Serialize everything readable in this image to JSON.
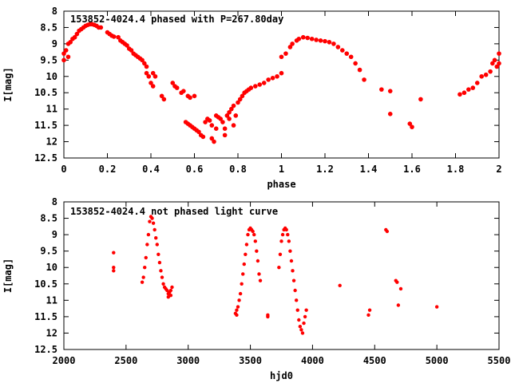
{
  "chart_data": [
    {
      "type": "scatter",
      "title": "153852-4024.4 phased with P=267.80day",
      "xlabel": "phase",
      "ylabel": "I[mag]",
      "xlim": [
        0,
        2
      ],
      "ylim": [
        12.5,
        8
      ],
      "y_inverted": true,
      "grid": false,
      "marker_color": "#ff0000",
      "x_ticks": [
        {
          "value": 0,
          "label": "0"
        },
        {
          "value": 0.2,
          "label": "0.2"
        },
        {
          "value": 0.4,
          "label": "0.4"
        },
        {
          "value": 0.6,
          "label": "0.6"
        },
        {
          "value": 0.8,
          "label": "0.8"
        },
        {
          "value": 1,
          "label": "1"
        },
        {
          "value": 1.2,
          "label": "1.2"
        },
        {
          "value": 1.4,
          "label": "1.4"
        },
        {
          "value": 1.6,
          "label": "1.6"
        },
        {
          "value": 1.8,
          "label": "1.8"
        },
        {
          "value": 2,
          "label": "2"
        }
      ],
      "y_ticks": [
        {
          "value": 8,
          "label": "8"
        },
        {
          "value": 8.5,
          "label": "8.5"
        },
        {
          "value": 9,
          "label": "9"
        },
        {
          "value": 9.5,
          "label": "9.5"
        },
        {
          "value": 10,
          "label": "10"
        },
        {
          "value": 10.5,
          "label": "10.5"
        },
        {
          "value": 11,
          "label": "11"
        },
        {
          "value": 11.5,
          "label": "11.5"
        },
        {
          "value": 12,
          "label": "12"
        },
        {
          "value": 12.5,
          "label": "12.5"
        }
      ],
      "points": [
        [
          0.0,
          9.3
        ],
        [
          0.0,
          9.5
        ],
        [
          0.01,
          9.2
        ],
        [
          0.02,
          9.0
        ],
        [
          0.02,
          9.4
        ],
        [
          0.03,
          8.95
        ],
        [
          0.04,
          8.85
        ],
        [
          0.05,
          8.8
        ],
        [
          0.06,
          8.7
        ],
        [
          0.07,
          8.6
        ],
        [
          0.08,
          8.55
        ],
        [
          0.09,
          8.5
        ],
        [
          0.1,
          8.45
        ],
        [
          0.11,
          8.42
        ],
        [
          0.12,
          8.4
        ],
        [
          0.13,
          8.4
        ],
        [
          0.14,
          8.42
        ],
        [
          0.15,
          8.45
        ],
        [
          0.16,
          8.5
        ],
        [
          0.17,
          8.5
        ],
        [
          0.2,
          8.65
        ],
        [
          0.21,
          8.7
        ],
        [
          0.22,
          8.75
        ],
        [
          0.23,
          8.78
        ],
        [
          0.25,
          8.8
        ],
        [
          0.26,
          8.9
        ],
        [
          0.27,
          8.95
        ],
        [
          0.28,
          9.0
        ],
        [
          0.29,
          9.05
        ],
        [
          0.3,
          9.15
        ],
        [
          0.31,
          9.2
        ],
        [
          0.32,
          9.3
        ],
        [
          0.33,
          9.35
        ],
        [
          0.34,
          9.4
        ],
        [
          0.35,
          9.45
        ],
        [
          0.36,
          9.5
        ],
        [
          0.37,
          9.6
        ],
        [
          0.38,
          9.7
        ],
        [
          0.38,
          9.9
        ],
        [
          0.39,
          10.0
        ],
        [
          0.4,
          10.2
        ],
        [
          0.41,
          10.3
        ],
        [
          0.41,
          9.9
        ],
        [
          0.42,
          10.0
        ],
        [
          0.45,
          10.6
        ],
        [
          0.46,
          10.7
        ],
        [
          0.5,
          10.2
        ],
        [
          0.51,
          10.3
        ],
        [
          0.52,
          10.35
        ],
        [
          0.54,
          10.5
        ],
        [
          0.55,
          10.45
        ],
        [
          0.57,
          10.6
        ],
        [
          0.58,
          10.65
        ],
        [
          0.6,
          10.6
        ],
        [
          0.56,
          11.4
        ],
        [
          0.57,
          11.45
        ],
        [
          0.58,
          11.5
        ],
        [
          0.59,
          11.55
        ],
        [
          0.6,
          11.6
        ],
        [
          0.61,
          11.65
        ],
        [
          0.62,
          11.7
        ],
        [
          0.63,
          11.8
        ],
        [
          0.64,
          11.85
        ],
        [
          0.65,
          11.4
        ],
        [
          0.66,
          11.3
        ],
        [
          0.67,
          11.35
        ],
        [
          0.68,
          11.5
        ],
        [
          0.68,
          11.9
        ],
        [
          0.69,
          12.0
        ],
        [
          0.7,
          11.6
        ],
        [
          0.7,
          11.2
        ],
        [
          0.71,
          11.25
        ],
        [
          0.72,
          11.3
        ],
        [
          0.73,
          11.4
        ],
        [
          0.74,
          11.6
        ],
        [
          0.74,
          11.8
        ],
        [
          0.75,
          11.2
        ],
        [
          0.76,
          11.1
        ],
        [
          0.76,
          11.3
        ],
        [
          0.77,
          11.0
        ],
        [
          0.78,
          10.9
        ],
        [
          0.78,
          11.5
        ],
        [
          0.79,
          11.2
        ],
        [
          0.8,
          10.8
        ],
        [
          0.81,
          10.7
        ],
        [
          0.82,
          10.6
        ],
        [
          0.83,
          10.5
        ],
        [
          0.84,
          10.45
        ],
        [
          0.85,
          10.4
        ],
        [
          0.86,
          10.35
        ],
        [
          0.88,
          10.3
        ],
        [
          0.9,
          10.25
        ],
        [
          0.92,
          10.2
        ],
        [
          0.94,
          10.1
        ],
        [
          0.96,
          10.05
        ],
        [
          0.98,
          10.0
        ],
        [
          1.0,
          9.9
        ],
        [
          1.0,
          9.4
        ],
        [
          1.02,
          9.3
        ],
        [
          1.04,
          9.1
        ],
        [
          1.05,
          9.0
        ],
        [
          1.07,
          8.9
        ],
        [
          1.08,
          8.85
        ],
        [
          1.1,
          8.8
        ],
        [
          1.12,
          8.82
        ],
        [
          1.14,
          8.85
        ],
        [
          1.16,
          8.88
        ],
        [
          1.18,
          8.9
        ],
        [
          1.2,
          8.92
        ],
        [
          1.22,
          8.95
        ],
        [
          1.24,
          9.0
        ],
        [
          1.26,
          9.1
        ],
        [
          1.28,
          9.2
        ],
        [
          1.3,
          9.3
        ],
        [
          1.32,
          9.4
        ],
        [
          1.34,
          9.6
        ],
        [
          1.36,
          9.8
        ],
        [
          1.38,
          10.1
        ],
        [
          1.46,
          10.4
        ],
        [
          1.5,
          10.45
        ],
        [
          1.5,
          11.15
        ],
        [
          1.59,
          11.45
        ],
        [
          1.6,
          11.55
        ],
        [
          1.64,
          10.7
        ],
        [
          1.82,
          10.55
        ],
        [
          1.84,
          10.5
        ],
        [
          1.86,
          10.4
        ],
        [
          1.88,
          10.35
        ],
        [
          1.9,
          10.2
        ],
        [
          1.92,
          10.0
        ],
        [
          1.94,
          9.95
        ],
        [
          1.96,
          9.85
        ],
        [
          1.97,
          9.6
        ],
        [
          1.98,
          9.5
        ],
        [
          1.99,
          9.7
        ],
        [
          2.0,
          9.3
        ],
        [
          2.0,
          9.6
        ]
      ]
    },
    {
      "type": "scatter",
      "title": "153852-4024.4 not phased light curve",
      "xlabel": "hjd0",
      "ylabel": "I[mag]",
      "xlim": [
        2000,
        5500
      ],
      "ylim": [
        12.5,
        8
      ],
      "y_inverted": true,
      "grid": false,
      "marker_color": "#ff0000",
      "x_ticks": [
        {
          "value": 2000,
          "label": "2000"
        },
        {
          "value": 2500,
          "label": "2500"
        },
        {
          "value": 3000,
          "label": "3000"
        },
        {
          "value": 3500,
          "label": "3500"
        },
        {
          "value": 4000,
          "label": "4000"
        },
        {
          "value": 4500,
          "label": "4500"
        },
        {
          "value": 5000,
          "label": "5000"
        },
        {
          "value": 5500,
          "label": "5500"
        }
      ],
      "y_ticks": [
        {
          "value": 8,
          "label": "8"
        },
        {
          "value": 8.5,
          "label": "8.5"
        },
        {
          "value": 9,
          "label": "9"
        },
        {
          "value": 9.5,
          "label": "9.5"
        },
        {
          "value": 10,
          "label": "10"
        },
        {
          "value": 10.5,
          "label": "10.5"
        },
        {
          "value": 11,
          "label": "11"
        },
        {
          "value": 11.5,
          "label": "11.5"
        },
        {
          "value": 12,
          "label": "12"
        },
        {
          "value": 12.5,
          "label": "12.5"
        }
      ],
      "points": [
        [
          2400,
          9.55
        ],
        [
          2400,
          10.0
        ],
        [
          2400,
          10.1
        ],
        [
          2630,
          10.45
        ],
        [
          2640,
          10.3
        ],
        [
          2650,
          10.0
        ],
        [
          2660,
          9.7
        ],
        [
          2670,
          9.3
        ],
        [
          2680,
          9.0
        ],
        [
          2690,
          8.6
        ],
        [
          2700,
          8.45
        ],
        [
          2710,
          8.5
        ],
        [
          2720,
          8.65
        ],
        [
          2730,
          8.85
        ],
        [
          2740,
          9.1
        ],
        [
          2750,
          9.3
        ],
        [
          2760,
          9.6
        ],
        [
          2770,
          9.85
        ],
        [
          2780,
          10.1
        ],
        [
          2790,
          10.3
        ],
        [
          2800,
          10.5
        ],
        [
          2810,
          10.6
        ],
        [
          2820,
          10.65
        ],
        [
          2830,
          10.7
        ],
        [
          2840,
          10.8
        ],
        [
          2850,
          10.75
        ],
        [
          2860,
          10.7
        ],
        [
          2870,
          10.6
        ],
        [
          2860,
          10.85
        ],
        [
          2840,
          10.9
        ],
        [
          3380,
          11.4
        ],
        [
          3390,
          11.3
        ],
        [
          3400,
          11.2
        ],
        [
          3410,
          11.0
        ],
        [
          3420,
          10.8
        ],
        [
          3430,
          10.5
        ],
        [
          3440,
          10.2
        ],
        [
          3450,
          9.9
        ],
        [
          3460,
          9.6
        ],
        [
          3470,
          9.3
        ],
        [
          3480,
          9.0
        ],
        [
          3490,
          8.85
        ],
        [
          3500,
          8.8
        ],
        [
          3510,
          8.85
        ],
        [
          3520,
          8.9
        ],
        [
          3530,
          9.0
        ],
        [
          3540,
          9.2
        ],
        [
          3550,
          9.5
        ],
        [
          3560,
          9.8
        ],
        [
          3570,
          10.2
        ],
        [
          3580,
          10.4
        ],
        [
          3390,
          11.45
        ],
        [
          3640,
          11.45
        ],
        [
          3640,
          11.5
        ],
        [
          3730,
          10.0
        ],
        [
          3740,
          9.6
        ],
        [
          3750,
          9.2
        ],
        [
          3760,
          9.0
        ],
        [
          3770,
          8.85
        ],
        [
          3780,
          8.8
        ],
        [
          3790,
          8.85
        ],
        [
          3800,
          9.0
        ],
        [
          3810,
          9.2
        ],
        [
          3820,
          9.5
        ],
        [
          3830,
          9.8
        ],
        [
          3840,
          10.1
        ],
        [
          3850,
          10.4
        ],
        [
          3860,
          10.7
        ],
        [
          3870,
          11.0
        ],
        [
          3880,
          11.3
        ],
        [
          3890,
          11.6
        ],
        [
          3900,
          11.8
        ],
        [
          3910,
          11.9
        ],
        [
          3920,
          12.0
        ],
        [
          3930,
          11.7
        ],
        [
          3940,
          11.5
        ],
        [
          3950,
          11.3
        ],
        [
          4220,
          10.55
        ],
        [
          4450,
          11.45
        ],
        [
          4460,
          11.3
        ],
        [
          4590,
          8.85
        ],
        [
          4600,
          8.9
        ],
        [
          4670,
          10.4
        ],
        [
          4680,
          10.45
        ],
        [
          4690,
          11.15
        ],
        [
          4710,
          10.65
        ],
        [
          5000,
          11.2
        ]
      ]
    }
  ]
}
